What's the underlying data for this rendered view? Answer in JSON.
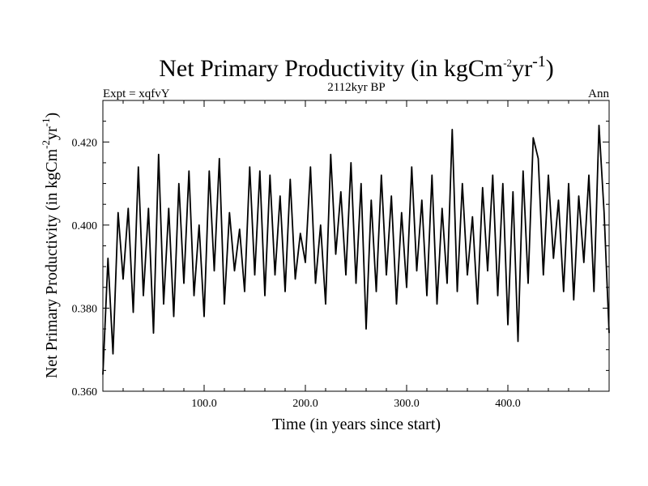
{
  "chart_data": {
    "type": "line",
    "title": {
      "main": "Net Primary Productivity (in kgCm",
      "sup1": "-2",
      "mid": "yr",
      "sup2": "-1",
      "end": ")"
    },
    "left_label": "Expt = xqfvY",
    "center_label": "2112kyr BP",
    "right_label": "Ann",
    "xlabel": "Time (in years since start)",
    "ylabel": {
      "main": "Net Primary Productivity (in kgCm",
      "sup1": "-2",
      "mid": "yr",
      "sup2": "-1",
      "end": ")"
    },
    "xlim": [
      0,
      500
    ],
    "ylim": [
      0.36,
      0.43
    ],
    "x_ticks": [
      {
        "value": 100,
        "label": "100.0"
      },
      {
        "value": 200,
        "label": "200.0"
      },
      {
        "value": 300,
        "label": "300.0"
      },
      {
        "value": 400,
        "label": "400.0"
      }
    ],
    "y_ticks": [
      {
        "value": 0.36,
        "label": "0.360"
      },
      {
        "value": 0.38,
        "label": "0.380"
      },
      {
        "value": 0.4,
        "label": "0.400"
      },
      {
        "value": 0.42,
        "label": "0.420"
      }
    ],
    "series": [
      {
        "name": "Ann",
        "color": "#000000",
        "x": [
          0,
          5,
          10,
          15,
          20,
          25,
          30,
          35,
          40,
          45,
          50,
          55,
          60,
          65,
          70,
          75,
          80,
          85,
          90,
          95,
          100,
          105,
          110,
          115,
          120,
          125,
          130,
          135,
          140,
          145,
          150,
          155,
          160,
          165,
          170,
          175,
          180,
          185,
          190,
          195,
          200,
          205,
          210,
          215,
          220,
          225,
          230,
          235,
          240,
          245,
          250,
          255,
          260,
          265,
          270,
          275,
          280,
          285,
          290,
          295,
          300,
          305,
          310,
          315,
          320,
          325,
          330,
          335,
          340,
          345,
          350,
          355,
          360,
          365,
          370,
          375,
          380,
          385,
          390,
          395,
          400,
          405,
          410,
          415,
          420,
          425,
          430,
          435,
          440,
          445,
          450,
          455,
          460,
          465,
          470,
          475,
          480,
          485,
          490,
          495,
          500
        ],
        "values": [
          0.364,
          0.392,
          0.369,
          0.403,
          0.387,
          0.404,
          0.379,
          0.414,
          0.383,
          0.404,
          0.374,
          0.417,
          0.381,
          0.404,
          0.378,
          0.41,
          0.386,
          0.413,
          0.383,
          0.4,
          0.378,
          0.413,
          0.389,
          0.416,
          0.381,
          0.403,
          0.389,
          0.399,
          0.384,
          0.414,
          0.388,
          0.413,
          0.383,
          0.412,
          0.388,
          0.407,
          0.384,
          0.411,
          0.387,
          0.398,
          0.391,
          0.414,
          0.386,
          0.4,
          0.381,
          0.417,
          0.393,
          0.408,
          0.388,
          0.415,
          0.386,
          0.41,
          0.375,
          0.406,
          0.384,
          0.412,
          0.388,
          0.407,
          0.381,
          0.403,
          0.385,
          0.414,
          0.389,
          0.406,
          0.383,
          0.412,
          0.381,
          0.404,
          0.386,
          0.423,
          0.384,
          0.41,
          0.388,
          0.402,
          0.381,
          0.409,
          0.389,
          0.412,
          0.383,
          0.41,
          0.376,
          0.408,
          0.372,
          0.413,
          0.386,
          0.421,
          0.416,
          0.388,
          0.412,
          0.392,
          0.406,
          0.384,
          0.41,
          0.382,
          0.407,
          0.391,
          0.412,
          0.384,
          0.424,
          0.403,
          0.374
        ]
      }
    ]
  }
}
